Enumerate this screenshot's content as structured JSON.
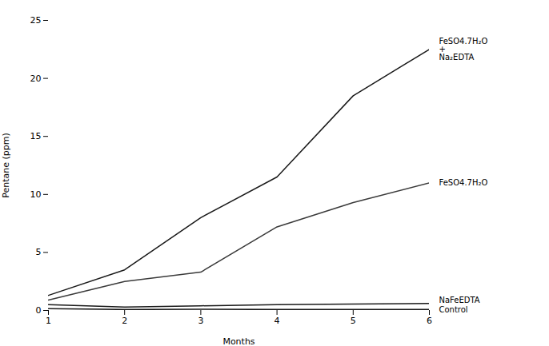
{
  "chart_data": {
    "type": "line",
    "xlabel": "Months",
    "ylabel": "Pentane (ppm)",
    "x": [
      1,
      2,
      3,
      4,
      5,
      6
    ],
    "series": [
      {
        "color": "#1a1a1a",
        "values": [
          1.3,
          3.5,
          8.0,
          11.5,
          18.5,
          22.5
        ]
      },
      {
        "color": "#3a3a3a",
        "values": [
          0.9,
          2.5,
          3.3,
          7.2,
          9.3,
          11.0
        ]
      },
      {
        "color": "#1a1a1a",
        "values": [
          0.5,
          0.3,
          0.4,
          0.5,
          0.55,
          0.6
        ]
      },
      {
        "color": "#1a1a1a",
        "values": [
          0.15,
          0.08,
          0.1,
          0.08,
          0.08,
          0.08
        ]
      }
    ],
    "xlim": [
      1,
      6
    ],
    "ylim": [
      0,
      25
    ],
    "xticks": [
      1,
      2,
      3,
      4,
      5,
      6
    ],
    "yticks": [
      0,
      5,
      10,
      15,
      20,
      25
    ],
    "grid": false,
    "annotations": [
      {
        "text": "FeSO4.7H₂O\n+\nNa₂EDTA",
        "y": 22.5
      },
      {
        "text": "FeSO4.7H₂O",
        "y": 11.0
      },
      {
        "text": "NaFeEDTA",
        "y": 0.9
      },
      {
        "text": "Control",
        "y": 0.08
      }
    ]
  }
}
